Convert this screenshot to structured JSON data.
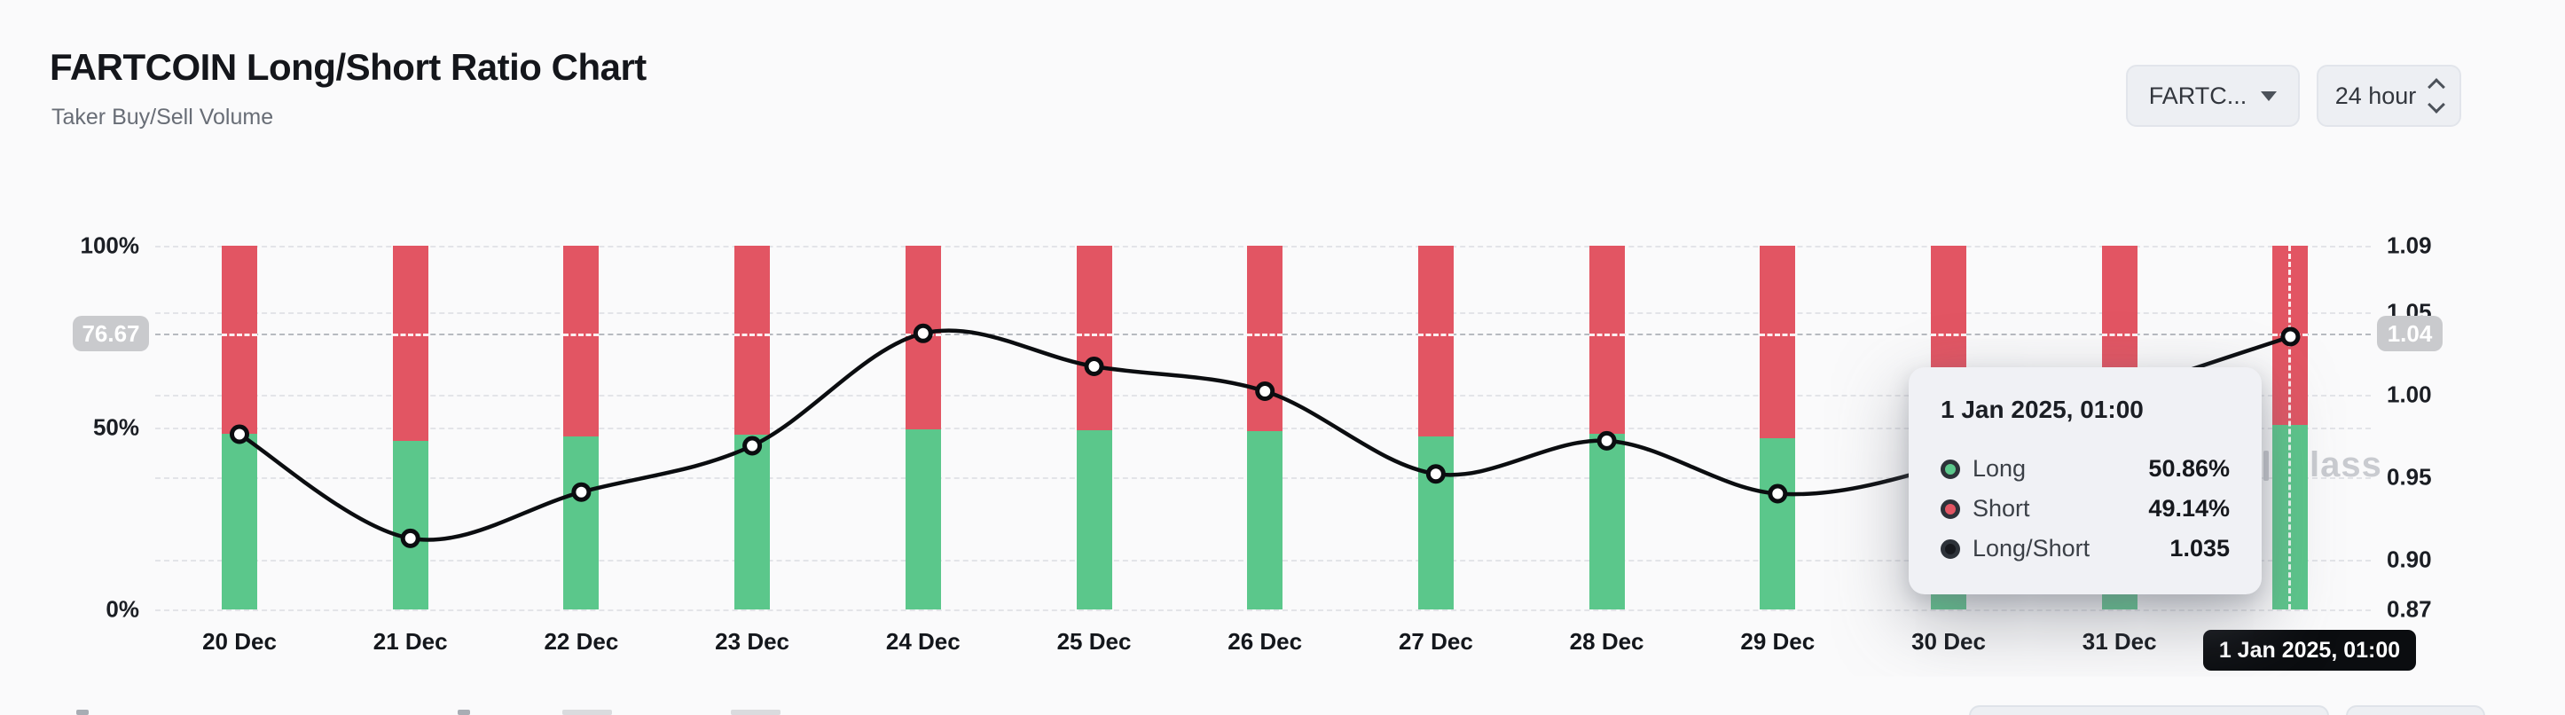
{
  "header": {
    "title": "FARTCOIN Long/Short Ratio Chart",
    "subtitle": "Taker Buy/Sell Volume"
  },
  "controls": {
    "symbol": {
      "label": "FARTC..."
    },
    "interval": {
      "label": "24 hour"
    }
  },
  "chart_data": {
    "type": "bar",
    "subtype": "stacked-percent-bars-with-ratio-line",
    "categories": [
      "20 Dec",
      "21 Dec",
      "22 Dec",
      "23 Dec",
      "24 Dec",
      "25 Dec",
      "26 Dec",
      "27 Dec",
      "28 Dec",
      "29 Dec",
      "30 Dec",
      "31 Dec",
      "1 Jan"
    ],
    "series": [
      {
        "name": "Long",
        "type": "bar",
        "unit": "%",
        "color": "#5bc78b",
        "values": [
          48.3,
          46.3,
          47.5,
          48.0,
          49.5,
          49.4,
          49.0,
          47.6,
          48.3,
          47.1,
          48.0,
          48.5,
          50.86
        ]
      },
      {
        "name": "Short",
        "type": "bar",
        "unit": "%",
        "color": "#e25563",
        "values": [
          51.7,
          53.7,
          52.5,
          52.0,
          50.5,
          50.6,
          51.0,
          52.4,
          51.7,
          52.9,
          52.0,
          51.5,
          49.14
        ]
      },
      {
        "name": "Long/Short",
        "type": "line",
        "unit": "ratio",
        "color": "#0b0d10",
        "values": [
          0.976,
          0.913,
          0.941,
          0.969,
          1.037,
          1.017,
          1.002,
          0.952,
          0.972,
          0.94,
          0.958,
          1.0,
          1.035
        ]
      }
    ],
    "left_axis": {
      "tick_labels": [
        "100%",
        "50%",
        "0%"
      ],
      "tick_values": [
        100,
        50,
        0
      ],
      "range": [
        0,
        100
      ]
    },
    "right_axis": {
      "tick_labels": [
        "1.09",
        "1.05",
        "1.00",
        "0.95",
        "0.90",
        "0.87"
      ],
      "tick_values": [
        1.09,
        1.05,
        1.0,
        0.95,
        0.9,
        0.87
      ],
      "range": [
        0.87,
        1.09
      ]
    },
    "grid": "dashed-horizontal",
    "legend_position": "none"
  },
  "crosshair": {
    "left_label": "76.67",
    "right_label": "1.04",
    "x_label": "1 Jan 2025, 01:00",
    "hover_index": 12,
    "value": 1.035
  },
  "tooltip": {
    "title": "1 Jan 2025, 01:00",
    "rows": [
      {
        "label": "Long",
        "value": "50.86%",
        "color": "#5bc78b"
      },
      {
        "label": "Short",
        "value": "49.14%",
        "color": "#e25563"
      },
      {
        "label": "Long/Short",
        "value": "1.035",
        "color": "#16181d"
      }
    ]
  },
  "watermark_fragment": "lass",
  "colors": {
    "long": "#5bc78b",
    "short": "#e25563",
    "line": "#0b0d10",
    "crosshair_pill": "#c9cacd",
    "date_pill": "#0b0d10"
  }
}
